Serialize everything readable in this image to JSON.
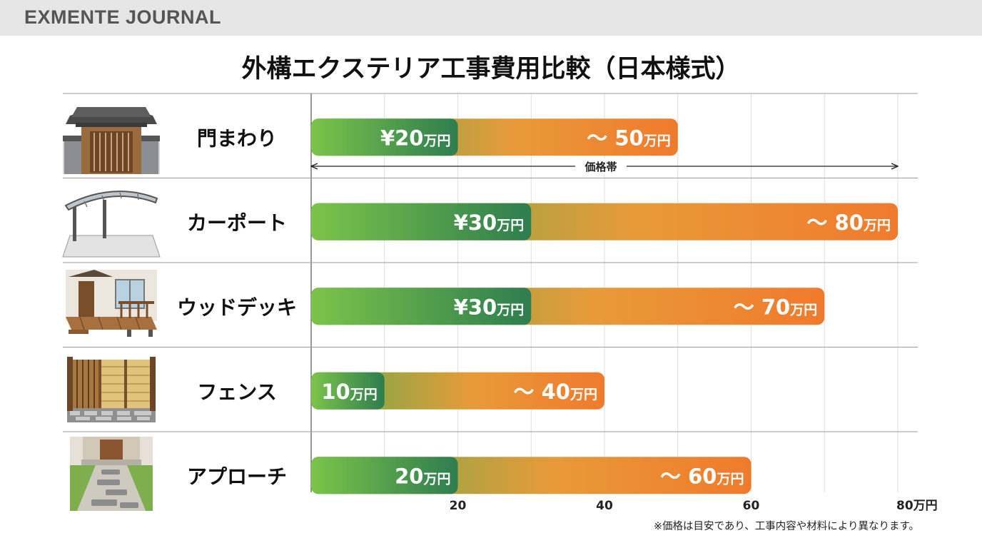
{
  "brand": "EXMENTE JOURNAL",
  "title": "外構エクステリア工事費用比較（日本様式）",
  "note": "※価格は目安であり、工事内容や材料により異なります。",
  "colors": {
    "green": "#6db33f",
    "green_dark": "#2e7d4f",
    "orange": "#f07a2c",
    "grid": "#dddddd",
    "row_line": "#9a9a9a"
  },
  "chart_data": {
    "type": "bar",
    "orientation": "horizontal",
    "title": "外構エクステリア工事費用比較（日本様式）",
    "unit": "万円",
    "xlim": [
      0,
      80
    ],
    "x_ticks": [
      20,
      40,
      60,
      80
    ],
    "x_tick_labels": [
      "20",
      "40",
      "60",
      "80万円"
    ],
    "grid": true,
    "range_annotation": "価格帯",
    "categories": [
      "門まわり",
      "カーポート",
      "ウッドデッキ",
      "フェンス",
      "アプローチ"
    ],
    "icons": [
      "japanese-gate-icon",
      "carport-icon",
      "wood-deck-icon",
      "bamboo-fence-icon",
      "stone-approach-icon"
    ],
    "min": [
      20,
      30,
      30,
      10,
      20
    ],
    "max": [
      50,
      80,
      70,
      40,
      60
    ],
    "min_labels": [
      {
        "num": "¥20",
        "unit": "万円"
      },
      {
        "num": "¥30",
        "unit": "万円"
      },
      {
        "num": "¥30",
        "unit": "万円"
      },
      {
        "num": "10",
        "unit": "万円"
      },
      {
        "num": "20",
        "unit": "万円"
      }
    ],
    "max_labels": [
      {
        "num": "～ 50",
        "unit": "万円"
      },
      {
        "num": "～ 80",
        "unit": "万円"
      },
      {
        "num": "～ 70",
        "unit": "万円"
      },
      {
        "num": "～ 40",
        "unit": "万円"
      },
      {
        "num": "～ 60",
        "unit": "万円"
      }
    ]
  }
}
